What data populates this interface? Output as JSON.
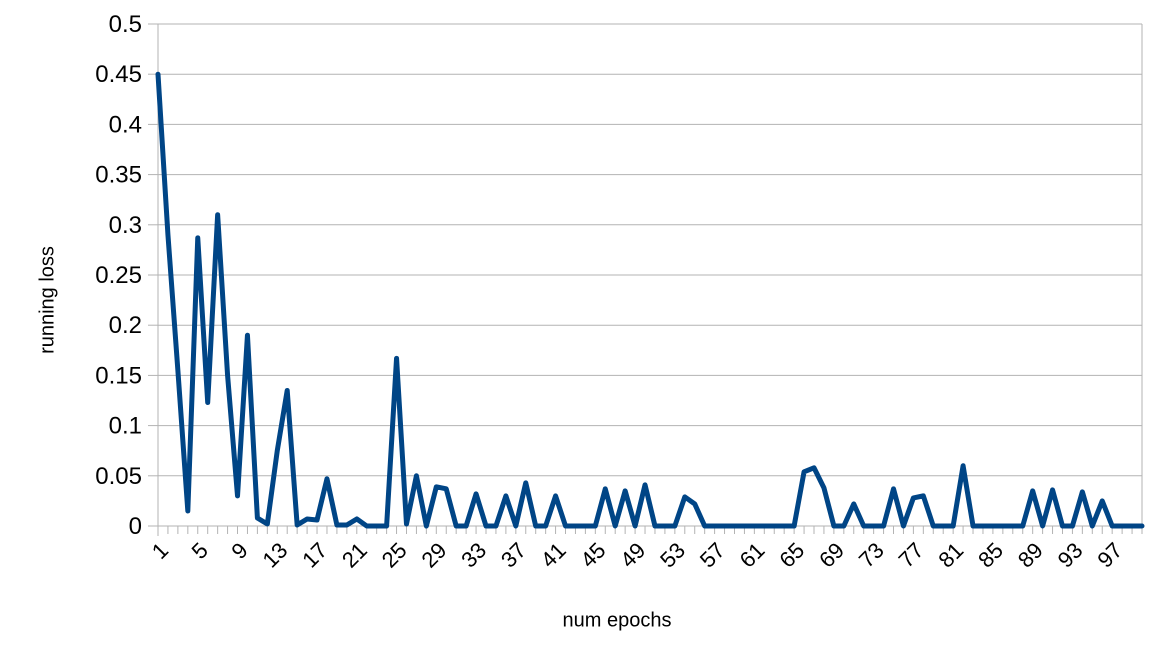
{
  "chart_data": {
    "type": "line",
    "title": "",
    "xlabel": "num epochs",
    "ylabel": "running loss",
    "ylim": [
      0,
      0.5
    ],
    "yticks": [
      "0",
      "0.05",
      "0.1",
      "0.15",
      "0.2",
      "0.25",
      "0.3",
      "0.35",
      "0.4",
      "0.45",
      "0.5"
    ],
    "xticks": [
      "1",
      "5",
      "9",
      "13",
      "17",
      "21",
      "25",
      "29",
      "33",
      "37",
      "41",
      "45",
      "49",
      "53",
      "57",
      "61",
      "65",
      "69",
      "73",
      "77",
      "81",
      "85",
      "89",
      "93",
      "97"
    ],
    "grid": true,
    "legend": "none",
    "line_color": "#004586",
    "x": [
      1,
      2,
      3,
      4,
      5,
      6,
      7,
      8,
      9,
      10,
      11,
      12,
      13,
      14,
      15,
      16,
      17,
      18,
      19,
      20,
      21,
      22,
      23,
      24,
      25,
      26,
      27,
      28,
      29,
      30,
      31,
      32,
      33,
      34,
      35,
      36,
      37,
      38,
      39,
      40,
      41,
      42,
      43,
      44,
      45,
      46,
      47,
      48,
      49,
      50,
      51,
      52,
      53,
      54,
      55,
      56,
      57,
      58,
      59,
      60,
      61,
      62,
      63,
      64,
      65,
      66,
      67,
      68,
      69,
      70,
      71,
      72,
      73,
      74,
      75,
      76,
      77,
      78,
      79,
      80,
      81,
      82,
      83,
      84,
      85,
      86,
      87,
      88,
      89,
      90,
      91,
      92,
      93,
      94,
      95,
      96,
      97,
      98,
      99,
      100
    ],
    "series": [
      {
        "values": [
          0.45,
          0.29,
          0.155,
          0.015,
          0.287,
          0.123,
          0.31,
          0.15,
          0.03,
          0.19,
          0.008,
          0.002,
          0.075,
          0.135,
          0.001,
          0.007,
          0.006,
          0.047,
          0.001,
          0.001,
          0.007,
          0.0,
          0.0,
          0.0,
          0.167,
          0.002,
          0.05,
          0.0,
          0.039,
          0.037,
          0.0,
          0.0,
          0.032,
          0.0,
          0.0,
          0.03,
          0.0,
          0.043,
          0.0,
          0.0,
          0.03,
          0.0,
          0.0,
          0.0,
          0.0,
          0.037,
          0.0,
          0.035,
          0.0,
          0.041,
          0.0,
          0.0,
          0.0,
          0.029,
          0.022,
          0.0,
          0.0,
          0.0,
          0.0,
          0.0,
          0.0,
          0.0,
          0.0,
          0.0,
          0.0,
          0.054,
          0.058,
          0.038,
          0.0,
          0.0,
          0.022,
          0.0,
          0.0,
          0.0,
          0.037,
          0.0,
          0.028,
          0.03,
          0.0,
          0.0,
          0.0,
          0.06,
          0.0,
          0.0,
          0.0,
          0.0,
          0.0,
          0.0,
          0.035,
          0.0,
          0.036,
          0.0,
          0.0,
          0.034,
          0.0,
          0.025,
          0.0,
          0.0,
          0.0,
          0.0
        ]
      }
    ]
  }
}
